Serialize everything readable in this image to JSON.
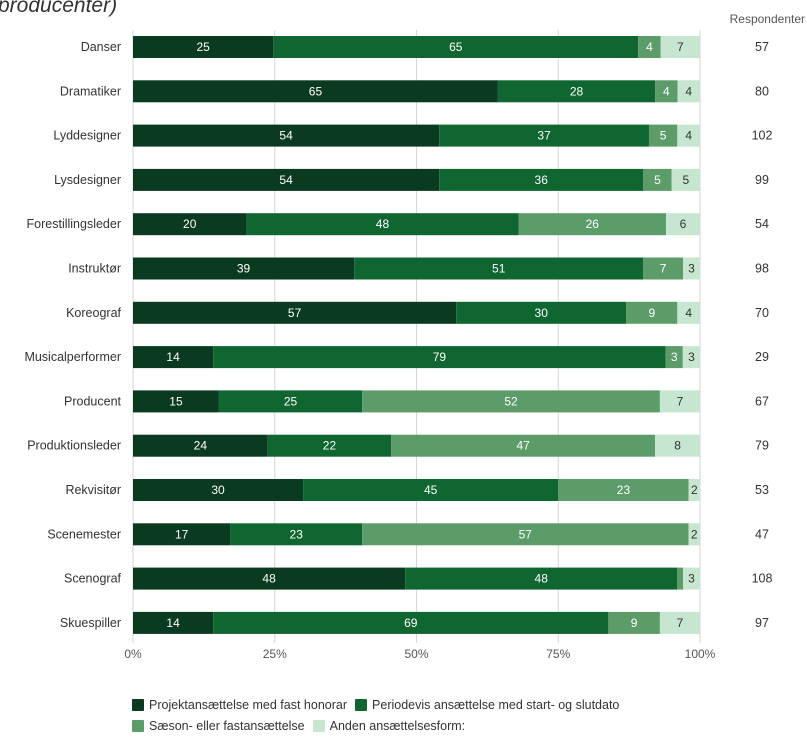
{
  "header": {
    "subtitle": "producenter)",
    "respondents_label": "Respondenter"
  },
  "colors": [
    "#0a3a1f",
    "#0f6630",
    "#5b9c68",
    "#c6e6cf"
  ],
  "legend": [
    {
      "label": "Projektansættelse med fast honorar",
      "color": "#0a3a1f"
    },
    {
      "label": "Periodevis ansættelse med start- og slutdato",
      "color": "#0f6630"
    },
    {
      "label": "Sæson- eller fastansættelse",
      "color": "#5b9c68"
    },
    {
      "label": "Anden ansættelsesform:",
      "color": "#c6e6cf"
    }
  ],
  "chart_data": {
    "type": "bar",
    "orientation": "horizontal",
    "stacked": "percent",
    "categories": [
      "Danser",
      "Dramatiker",
      "Lyddesigner",
      "Lysdesigner",
      "Forestillingsleder",
      "Instruktør",
      "Koreograf",
      "Musicalperformer",
      "Producent",
      "Produktionsleder",
      "Rekvisitør",
      "Scenemester",
      "Scenograf",
      "Skuespiller"
    ],
    "series": [
      {
        "name": "Projektansættelse med fast honorar",
        "values": [
          25,
          65,
          54,
          54,
          20,
          39,
          57,
          14,
          15,
          24,
          30,
          17,
          48,
          14
        ]
      },
      {
        "name": "Periodevis ansættelse med start- og slutdato",
        "values": [
          65,
          28,
          37,
          36,
          48,
          51,
          30,
          79,
          25,
          22,
          45,
          23,
          48,
          69
        ]
      },
      {
        "name": "Sæson- eller fastansættelse",
        "values": [
          4,
          4,
          5,
          5,
          26,
          7,
          9,
          3,
          52,
          47,
          23,
          57,
          1,
          9
        ]
      },
      {
        "name": "Anden ansættelsesform:",
        "values": [
          7,
          4,
          4,
          5,
          6,
          3,
          4,
          3,
          7,
          8,
          2,
          2,
          3,
          7
        ]
      }
    ],
    "respondents": [
      57,
      80,
      102,
      99,
      54,
      98,
      70,
      29,
      67,
      79,
      53,
      47,
      108,
      97
    ],
    "xticks": [
      "0%",
      "25%",
      "50%",
      "75%",
      "100%"
    ],
    "xlim": [
      0,
      100
    ],
    "grid": true,
    "legend_position": "bottom"
  }
}
